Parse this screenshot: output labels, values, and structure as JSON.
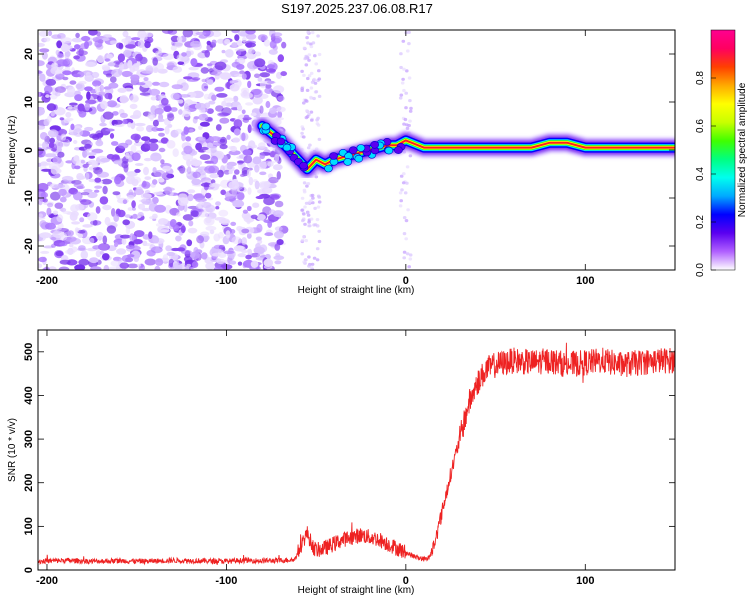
{
  "title": "S197.2025.237.06.08.R17",
  "colorbar": {
    "label": "Normalized spectral amplitude",
    "ticks": [
      0.0,
      0.2,
      0.4,
      0.6,
      0.8
    ],
    "range": [
      0,
      1
    ],
    "colors": [
      "#ffffff",
      "#b060ff",
      "#5a00f0",
      "#0000ff",
      "#00aaff",
      "#00ffee",
      "#00ff80",
      "#40ff00",
      "#c8ff00",
      "#ffff00",
      "#ffaa00",
      "#ff4000",
      "#ff0060",
      "#ff0090"
    ]
  },
  "chart_data": [
    {
      "type": "heatmap",
      "xlabel": "Height of straight line (km)",
      "ylabel": "Frequency (Hz)",
      "xlim": [
        -205,
        150
      ],
      "ylim": [
        -25,
        25
      ],
      "xticks": [
        -200,
        -100,
        0,
        100
      ],
      "yticks": [
        -20,
        -10,
        0,
        10,
        20
      ],
      "ridge": {
        "x": [
          -80,
          -70,
          -60,
          -55,
          -50,
          -45,
          -40,
          -30,
          -20,
          -10,
          -5,
          0,
          10,
          20,
          40,
          60,
          70,
          80,
          90,
          100,
          150
        ],
        "y": [
          5,
          2,
          -2,
          -4,
          -2,
          -3,
          -2,
          -1,
          0,
          1,
          1,
          2,
          0.5,
          0.5,
          0.5,
          0.5,
          0.5,
          1.5,
          1.5,
          0.5,
          0.5
        ]
      },
      "noise_region_x": [
        -205,
        -68
      ]
    },
    {
      "type": "line",
      "xlabel": "Height of straight line (km)",
      "ylabel": "SNR (10 * v/v)",
      "xlim": [
        -205,
        150
      ],
      "ylim": [
        0,
        550
      ],
      "xticks": [
        -200,
        -100,
        0,
        100
      ],
      "yticks": [
        0,
        100,
        200,
        300,
        400,
        500
      ],
      "series": [
        {
          "color": "#ee2222",
          "x": [
            -205,
            -190,
            -175,
            -160,
            -145,
            -130,
            -115,
            -100,
            -90,
            -80,
            -70,
            -62,
            -58,
            -55,
            -52,
            -50,
            -45,
            -40,
            -35,
            -30,
            -25,
            -20,
            -15,
            -10,
            -5,
            0,
            5,
            10,
            13,
            16,
            20,
            25,
            30,
            35,
            40,
            45,
            50,
            60,
            70,
            80,
            90,
            100,
            110,
            120,
            130,
            140,
            150
          ],
          "y": [
            20,
            22,
            20,
            21,
            20,
            22,
            21,
            20,
            22,
            21,
            22,
            24,
            60,
            85,
            55,
            45,
            50,
            60,
            70,
            75,
            80,
            75,
            70,
            60,
            50,
            40,
            30,
            25,
            28,
            60,
            130,
            220,
            300,
            380,
            430,
            460,
            470,
            480,
            475,
            480,
            470,
            475,
            480,
            470,
            475,
            480,
            480
          ]
        }
      ]
    }
  ]
}
